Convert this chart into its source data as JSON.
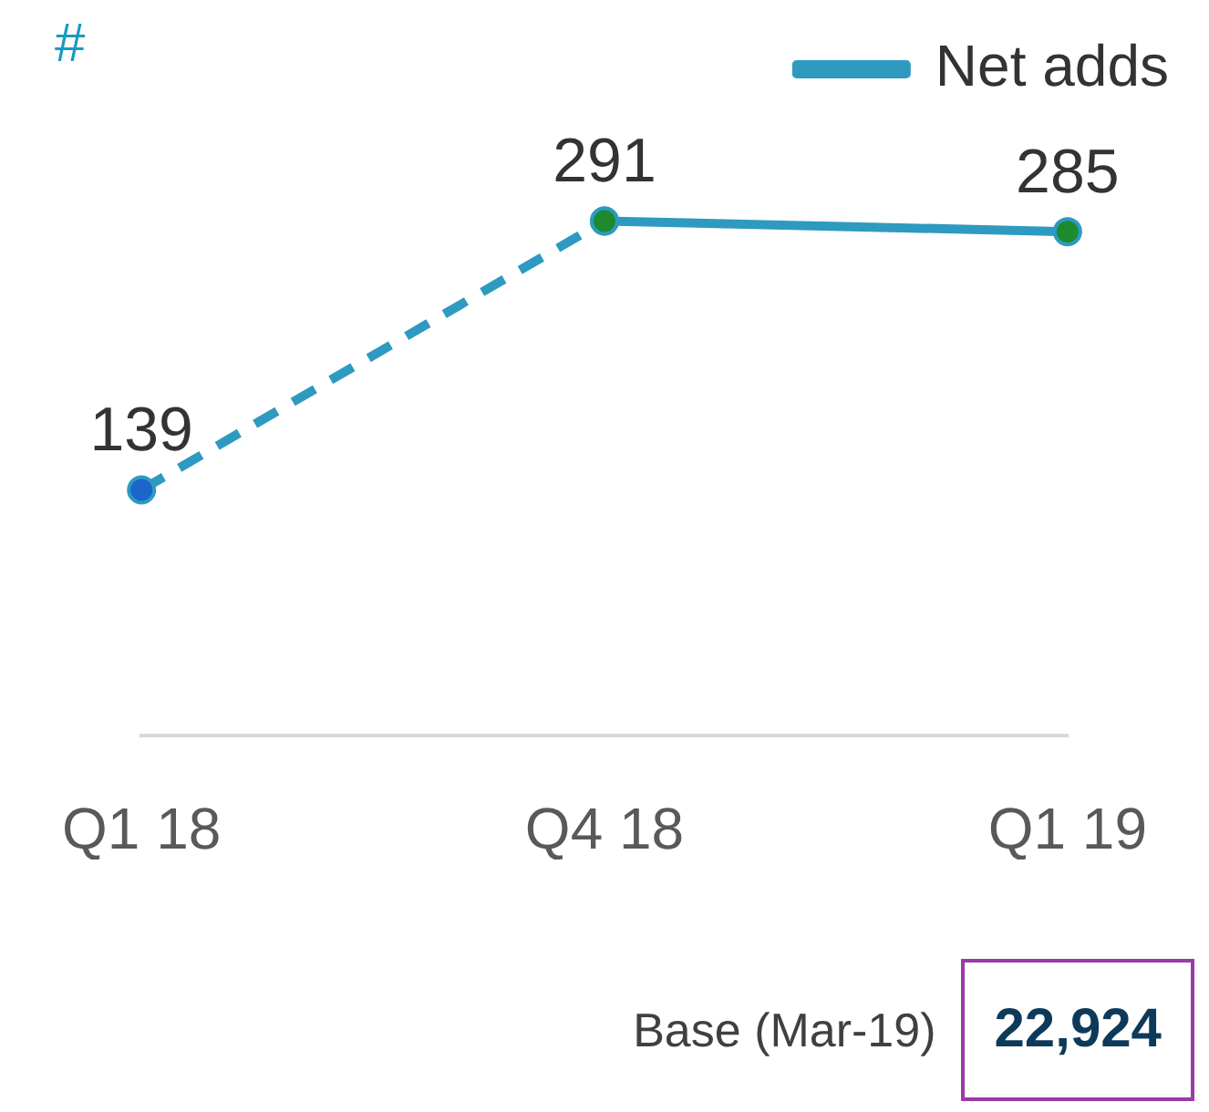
{
  "chart_data": {
    "type": "line",
    "ylabel": "#",
    "categories": [
      "Q1 18",
      "Q4 18",
      "Q1 19"
    ],
    "tick_labels": "x",
    "grid": false,
    "legend": "top right",
    "series": [
      {
        "color": "#2e9ac0",
        "line_style": "dashed",
        "marker": "circle",
        "colors": [
          "#1a66cc",
          "#1e8a2e",
          null
        ],
        "values": [
          139,
          291,
          null
        ],
        "value_labels": [
          "139",
          null,
          null
        ]
      },
      {
        "name": "Net adds",
        "color": "#2e9ac0",
        "line_style": "solid",
        "marker": "circle",
        "colors": [
          null,
          "#1e8a2e",
          "#1e8a2e"
        ],
        "values": [
          null,
          291,
          285
        ],
        "value_labels": [
          null,
          "291",
          "285"
        ]
      }
    ],
    "annotations": [
      "Base (Mar-19)",
      "22,924"
    ]
  }
}
